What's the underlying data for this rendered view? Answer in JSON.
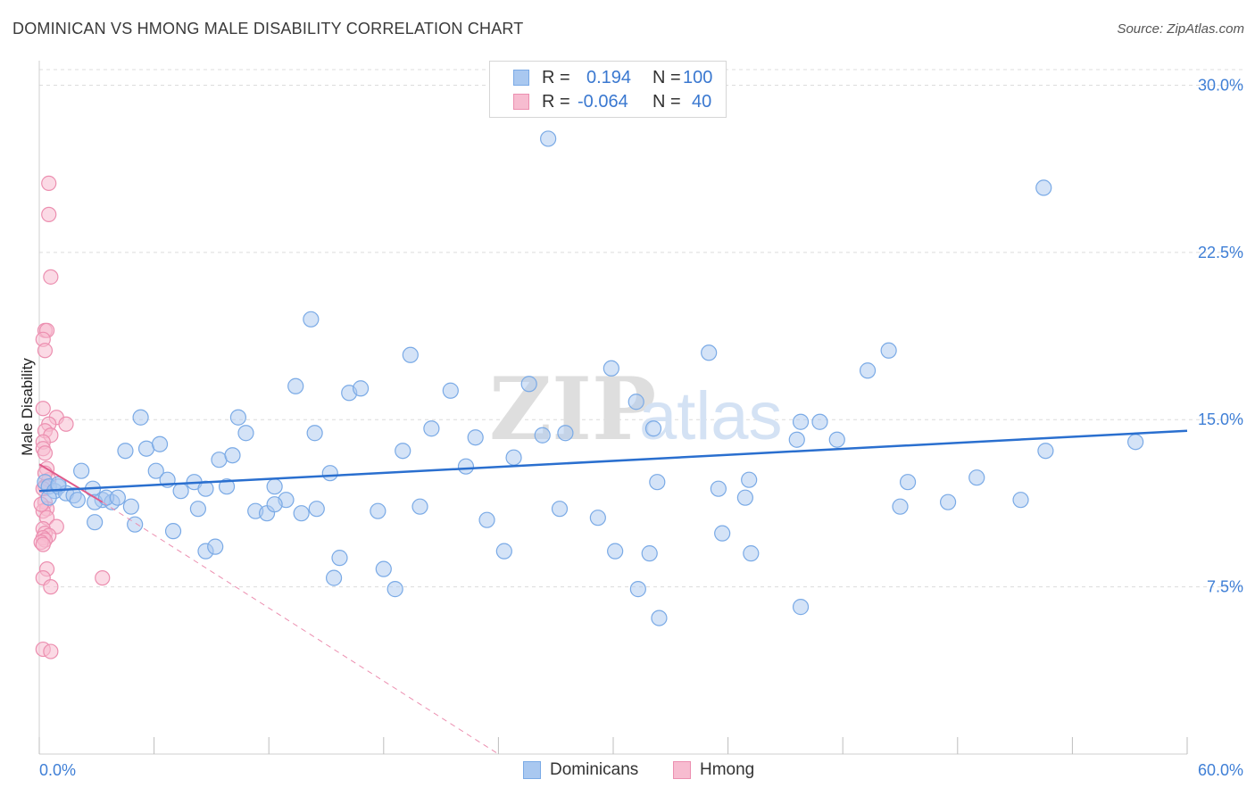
{
  "header": {
    "title": "DOMINICAN VS HMONG MALE DISABILITY CORRELATION CHART",
    "source": "Source: ZipAtlas.com"
  },
  "legend_top": {
    "rows": [
      {
        "r_label": "R =",
        "r_value": "0.194",
        "n_label": "N =",
        "n_value": "100",
        "series": "Dominicans"
      },
      {
        "r_label": "R =",
        "r_value": "-0.064",
        "n_label": "N =",
        "n_value": "40",
        "series": "Hmong"
      }
    ]
  },
  "legend_bottom": {
    "items": [
      {
        "label": "Dominicans"
      },
      {
        "label": "Hmong"
      }
    ]
  },
  "watermark": {
    "part1": "ZIP",
    "part2": "atlas"
  },
  "colors": {
    "blue_fill": "#a9c8f0",
    "blue_stroke": "#7aaae6",
    "blue_line": "#2a6fcf",
    "pink_fill": "#f7bcd0",
    "pink_stroke": "#ec8fb0",
    "pink_line": "#e05a8a",
    "axis_text": "#3f7fd6",
    "grid": "#dcdcdc"
  },
  "chart_data": {
    "type": "scatter",
    "title": "DOMINICAN VS HMONG MALE DISABILITY CORRELATION CHART",
    "xlabel": "",
    "ylabel": "Male Disability",
    "xlim": [
      0,
      60
    ],
    "ylim": [
      0,
      31.5
    ],
    "x_tick_labels": [
      "0.0%",
      "60.0%"
    ],
    "y_ticks": [
      7.5,
      15.0,
      22.5,
      30.0
    ],
    "y_tick_labels": [
      "7.5%",
      "15.0%",
      "22.5%",
      "30.0%"
    ],
    "grid": "horizontal-dashed",
    "legend": "top-center",
    "series": [
      {
        "name": "Dominicans",
        "color": "#a9c8f0",
        "trend": {
          "x": [
            0,
            60
          ],
          "y": [
            11.8,
            14.5
          ]
        },
        "points": [
          [
            0.3,
            12.2
          ],
          [
            0.5,
            12.0
          ],
          [
            0.8,
            11.8
          ],
          [
            1.0,
            12.0
          ],
          [
            1.4,
            11.7
          ],
          [
            1.8,
            11.6
          ],
          [
            2.2,
            12.7
          ],
          [
            2.8,
            11.9
          ],
          [
            3.3,
            11.4
          ],
          [
            3.8,
            11.3
          ],
          [
            0.5,
            11.5
          ],
          [
            2.9,
            11.3
          ],
          [
            1.0,
            12.1
          ],
          [
            2.0,
            11.4
          ],
          [
            3.5,
            11.5
          ],
          [
            4.1,
            11.5
          ],
          [
            4.8,
            11.1
          ],
          [
            2.9,
            10.4
          ],
          [
            5.0,
            10.3
          ],
          [
            5.6,
            13.7
          ],
          [
            6.1,
            12.7
          ],
          [
            6.7,
            12.3
          ],
          [
            7.4,
            11.8
          ],
          [
            8.1,
            12.2
          ],
          [
            8.7,
            11.9
          ],
          [
            9.4,
            13.2
          ],
          [
            10.1,
            13.4
          ],
          [
            10.4,
            15.1
          ],
          [
            11.3,
            10.9
          ],
          [
            11.9,
            10.8
          ],
          [
            12.3,
            12.0
          ],
          [
            12.9,
            11.4
          ],
          [
            13.7,
            10.8
          ],
          [
            14.5,
            11.0
          ],
          [
            5.3,
            15.1
          ],
          [
            4.5,
            13.6
          ],
          [
            6.3,
            13.9
          ],
          [
            7.0,
            10.0
          ],
          [
            8.7,
            9.1
          ],
          [
            10.8,
            14.4
          ],
          [
            13.4,
            16.5
          ],
          [
            14.4,
            14.4
          ],
          [
            12.3,
            11.2
          ],
          [
            15.2,
            12.6
          ],
          [
            15.7,
            8.8
          ],
          [
            16.2,
            16.2
          ],
          [
            16.8,
            16.4
          ],
          [
            17.7,
            10.9
          ],
          [
            19.0,
            13.6
          ],
          [
            19.9,
            11.1
          ],
          [
            20.5,
            14.6
          ],
          [
            21.5,
            16.3
          ],
          [
            22.3,
            12.9
          ],
          [
            22.8,
            14.2
          ],
          [
            23.4,
            10.5
          ],
          [
            24.3,
            9.1
          ],
          [
            24.8,
            13.3
          ],
          [
            25.6,
            16.6
          ],
          [
            26.3,
            14.3
          ],
          [
            26.6,
            27.6
          ],
          [
            27.5,
            14.4
          ],
          [
            27.2,
            11.0
          ],
          [
            29.2,
            10.6
          ],
          [
            29.9,
            17.3
          ],
          [
            30.1,
            9.1
          ],
          [
            31.2,
            15.8
          ],
          [
            31.3,
            7.4
          ],
          [
            32.1,
            14.6
          ],
          [
            32.3,
            12.2
          ],
          [
            31.9,
            9.0
          ],
          [
            32.4,
            6.1
          ],
          [
            35.0,
            18.0
          ],
          [
            35.5,
            11.9
          ],
          [
            35.7,
            9.9
          ],
          [
            36.9,
            11.5
          ],
          [
            37.1,
            12.3
          ],
          [
            37.2,
            9.0
          ],
          [
            39.8,
            6.6
          ],
          [
            39.6,
            14.1
          ],
          [
            39.8,
            14.9
          ],
          [
            40.8,
            14.9
          ],
          [
            41.7,
            14.1
          ],
          [
            43.3,
            17.2
          ],
          [
            44.4,
            18.1
          ],
          [
            45.4,
            12.2
          ],
          [
            45.0,
            11.1
          ],
          [
            47.5,
            11.3
          ],
          [
            49.0,
            12.4
          ],
          [
            51.3,
            11.4
          ],
          [
            52.5,
            25.4
          ],
          [
            52.6,
            13.6
          ],
          [
            57.3,
            14.0
          ],
          [
            8.3,
            11.0
          ],
          [
            9.2,
            9.3
          ],
          [
            15.4,
            7.9
          ],
          [
            18.0,
            8.3
          ],
          [
            18.6,
            7.4
          ],
          [
            9.8,
            12.0
          ],
          [
            14.2,
            19.5
          ],
          [
            19.4,
            17.9
          ]
        ]
      },
      {
        "name": "Hmong",
        "color": "#f7bcd0",
        "trend": {
          "x": [
            0,
            3.3
          ],
          "y": [
            13.0,
            11.3
          ]
        },
        "trend_extension": {
          "x": [
            3.3,
            24.0
          ],
          "y": [
            11.3,
            0.0
          ]
        },
        "points": [
          [
            0.5,
            25.6
          ],
          [
            0.5,
            24.2
          ],
          [
            0.6,
            21.4
          ],
          [
            0.3,
            19.0
          ],
          [
            0.4,
            19.0
          ],
          [
            0.2,
            18.6
          ],
          [
            0.3,
            18.1
          ],
          [
            0.2,
            15.5
          ],
          [
            0.9,
            15.1
          ],
          [
            1.4,
            14.8
          ],
          [
            0.5,
            14.8
          ],
          [
            0.3,
            14.5
          ],
          [
            0.6,
            14.3
          ],
          [
            0.2,
            14.0
          ],
          [
            0.2,
            13.7
          ],
          [
            0.3,
            13.5
          ],
          [
            0.4,
            12.8
          ],
          [
            0.5,
            12.3
          ],
          [
            0.3,
            12.0
          ],
          [
            0.2,
            11.9
          ],
          [
            0.3,
            11.3
          ],
          [
            0.4,
            11.0
          ],
          [
            0.2,
            10.9
          ],
          [
            0.4,
            10.6
          ],
          [
            0.9,
            10.2
          ],
          [
            0.2,
            10.1
          ],
          [
            0.3,
            9.9
          ],
          [
            0.5,
            9.8
          ],
          [
            0.2,
            9.7
          ],
          [
            0.3,
            9.6
          ],
          [
            0.1,
            9.5
          ],
          [
            0.2,
            9.4
          ],
          [
            0.4,
            8.3
          ],
          [
            0.2,
            7.9
          ],
          [
            0.6,
            7.5
          ],
          [
            3.3,
            7.9
          ],
          [
            0.2,
            4.7
          ],
          [
            0.6,
            4.6
          ],
          [
            0.3,
            12.6
          ],
          [
            0.1,
            11.2
          ]
        ]
      }
    ]
  }
}
